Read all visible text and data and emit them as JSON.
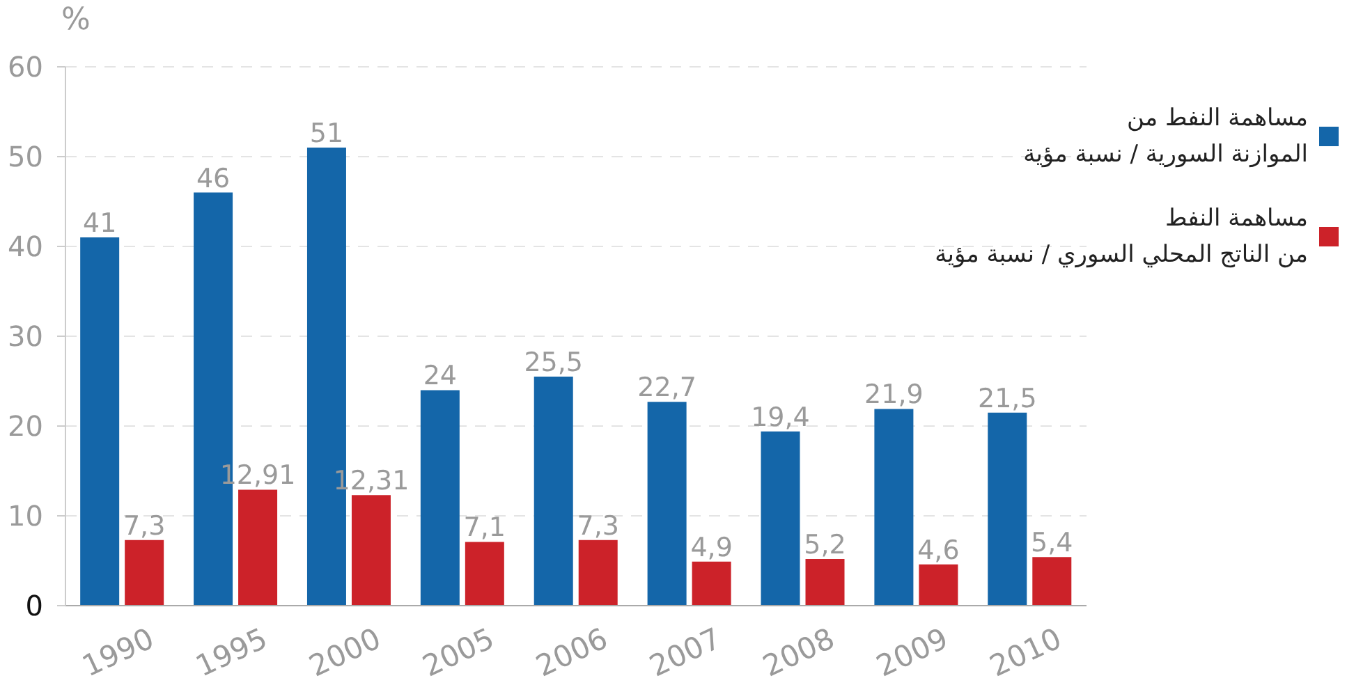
{
  "chart_data": {
    "type": "bar",
    "ylabel": "%",
    "categories": [
      "1990",
      "1995",
      "2000",
      "2005",
      "2006",
      "2007",
      "2008",
      "2009",
      "2010"
    ],
    "series": [
      {
        "name": "مساهمة النفط من\nالموازنة السورية / نسبة مؤية",
        "color": "#1466a9",
        "values": [
          41,
          46,
          51,
          24,
          25.5,
          22.7,
          19.4,
          21.9,
          21.5
        ],
        "value_labels": [
          "41",
          "46",
          "51",
          "24",
          "25,5",
          "22,7",
          "19,4",
          "21,9",
          "21,5"
        ]
      },
      {
        "name": "مساهمة النفط\nمن الناتج المحلي السوري / نسبة مؤية",
        "color": "#cc2229",
        "values": [
          7.3,
          12.91,
          12.31,
          7.1,
          7.3,
          4.9,
          5.2,
          4.6,
          5.4
        ],
        "value_labels": [
          "7,3",
          "12,91",
          "12,31",
          "7,1",
          "7,3",
          "4,9",
          "5,2",
          "4,6",
          "5,4"
        ]
      }
    ],
    "ylim": [
      0,
      60
    ],
    "yticks": [
      0,
      10,
      20,
      30,
      40,
      50,
      60
    ],
    "grid": "y",
    "legend": "right"
  }
}
